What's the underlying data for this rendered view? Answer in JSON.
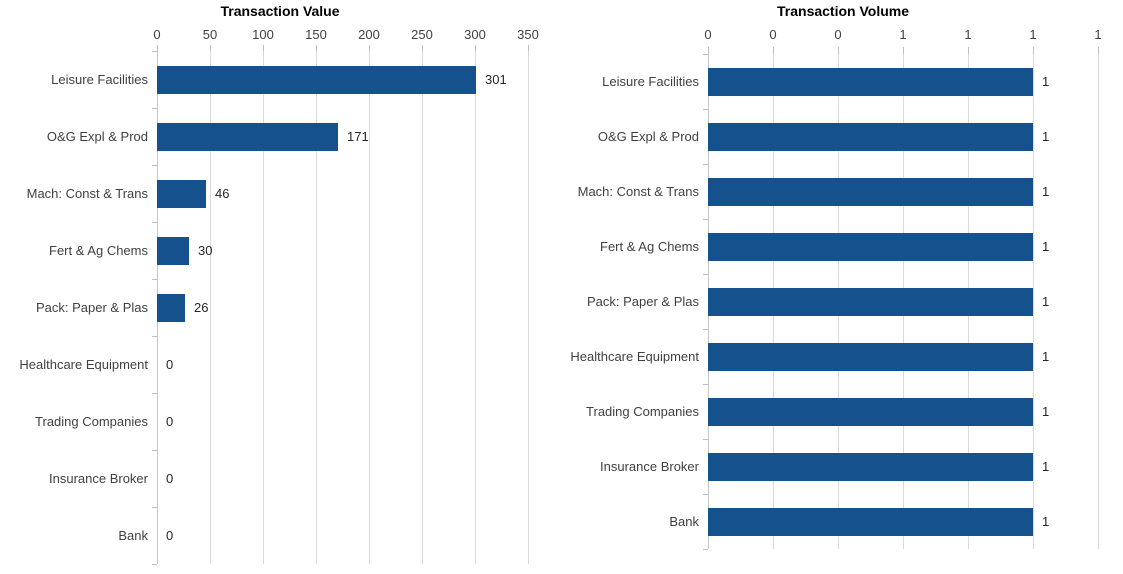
{
  "page": {
    "background_color": "#ffffff"
  },
  "colors": {
    "bar_fill": "#15518C",
    "gridline": "#D9D9D9",
    "axis_line": "#C6C6C6",
    "tick_mark": "#BFBFBF",
    "label_text": "#404040",
    "data_label_text": "#262626",
    "title_text": "#000000"
  },
  "chart_data": [
    {
      "type": "bar",
      "orientation": "horizontal",
      "title": "Transaction Value",
      "categories": [
        "Leisure Facilities",
        "O&G Expl & Prod",
        "Mach: Const & Trans",
        "Fert & Ag Chems",
        "Pack: Paper & Plas",
        "Healthcare Equipment",
        "Trading Companies",
        "Insurance Broker",
        "Bank"
      ],
      "values": [
        301,
        171,
        46,
        30,
        26,
        0,
        0,
        0,
        0
      ],
      "data_labels": [
        "301",
        "171",
        "46",
        "30",
        "26",
        "0",
        "0",
        "0",
        "0"
      ],
      "xlabel": "",
      "ylabel": "",
      "xlim": [
        0,
        350
      ],
      "xticks": [
        0,
        50,
        100,
        150,
        200,
        250,
        300,
        350
      ],
      "xtick_labels": [
        "0",
        "50",
        "100",
        "150",
        "200",
        "250",
        "300",
        "350"
      ],
      "value_axis_position": "top",
      "grid": true,
      "legend": false
    },
    {
      "type": "bar",
      "orientation": "horizontal",
      "title": "Transaction Volume",
      "categories": [
        "Leisure Facilities",
        "O&G Expl & Prod",
        "Mach: Const & Trans",
        "Fert & Ag Chems",
        "Pack: Paper & Plas",
        "Healthcare Equipment",
        "Trading Companies",
        "Insurance Broker",
        "Bank"
      ],
      "values": [
        1,
        1,
        1,
        1,
        1,
        1,
        1,
        1,
        1
      ],
      "data_labels": [
        "1",
        "1",
        "1",
        "1",
        "1",
        "1",
        "1",
        "1",
        "1"
      ],
      "xlabel": "",
      "ylabel": "",
      "xlim": [
        0,
        1.2
      ],
      "xticks": [
        0,
        0.2,
        0.4,
        0.6,
        0.8,
        1.0,
        1.2
      ],
      "xtick_labels": [
        "0",
        "0",
        "0",
        "1",
        "1",
        "1",
        "1"
      ],
      "value_axis_position": "top",
      "grid": true,
      "legend": false
    }
  ]
}
